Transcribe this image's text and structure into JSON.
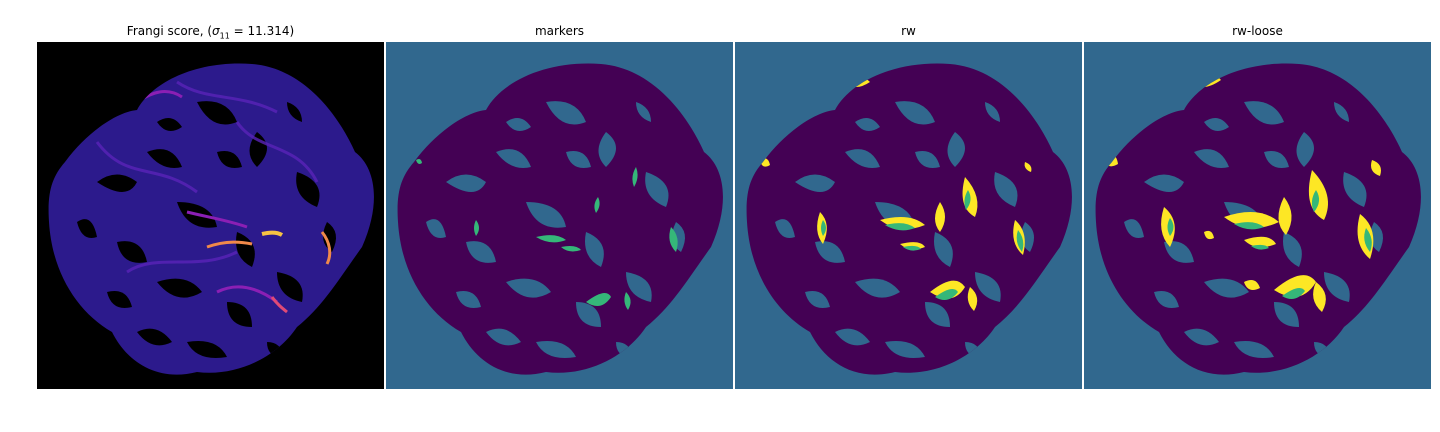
{
  "panels": [
    {
      "id": "frangi",
      "title_prefix": "Frangi score, (",
      "title_sigma": "σ",
      "title_sub": "11",
      "title_suffix": " = 11.314)"
    },
    {
      "id": "markers",
      "title": "markers"
    },
    {
      "id": "rw",
      "title": "rw"
    },
    {
      "id": "rw-loose",
      "title": "rw-loose"
    }
  ],
  "colors": {
    "frangi_background": "#000000",
    "frangi_low": "#3a20a8",
    "frangi_mid": "#8b1fb4",
    "frangi_high": "#f6c343",
    "viridis_background": "#31688e",
    "viridis_dark": "#440154",
    "viridis_green": "#35b779",
    "viridis_yellow": "#fde725"
  }
}
